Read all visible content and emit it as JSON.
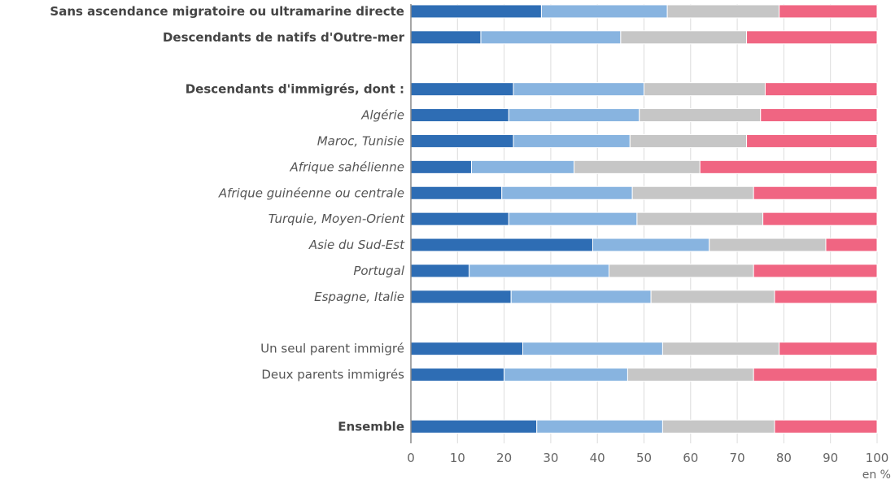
{
  "chart_data": {
    "type": "bar",
    "orientation": "horizontal",
    "stacked": true,
    "categories": [
      {
        "label": "Sans ascendance migratoire ou ultramarine directe",
        "style": "bold",
        "values": [
          28,
          27,
          24,
          21
        ]
      },
      {
        "label": "Descendants de natifs d'Outre-mer",
        "style": "bold",
        "values": [
          15,
          30,
          27,
          28
        ]
      },
      {
        "label": "",
        "style": "gap",
        "values": []
      },
      {
        "label": "Descendants d'immigrés, dont :",
        "style": "bold",
        "values": [
          22,
          28,
          26,
          24
        ]
      },
      {
        "label": "Algérie",
        "style": "italic",
        "values": [
          21,
          28,
          26,
          25
        ]
      },
      {
        "label": "Maroc, Tunisie",
        "style": "italic",
        "values": [
          22,
          25,
          25,
          28
        ]
      },
      {
        "label": "Afrique sahélienne",
        "style": "italic",
        "values": [
          13,
          22,
          27,
          38
        ]
      },
      {
        "label": "Afrique guinéenne ou centrale",
        "style": "italic",
        "values": [
          19.5,
          28,
          26,
          26.5
        ]
      },
      {
        "label": "Turquie, Moyen-Orient",
        "style": "italic",
        "values": [
          21,
          27.5,
          27,
          24.5
        ]
      },
      {
        "label": "Asie du Sud-Est",
        "style": "italic",
        "values": [
          39,
          25,
          25,
          11
        ]
      },
      {
        "label": "Portugal",
        "style": "italic",
        "values": [
          12.5,
          30,
          31,
          26.5
        ]
      },
      {
        "label": "Espagne, Italie",
        "style": "italic",
        "values": [
          21.5,
          30,
          26.5,
          22
        ]
      },
      {
        "label": "",
        "style": "gap",
        "values": []
      },
      {
        "label": "Un seul parent immigré",
        "style": "normal",
        "values": [
          24,
          30,
          25,
          21
        ]
      },
      {
        "label": "Deux parents immigrés",
        "style": "normal",
        "values": [
          20,
          26.5,
          27,
          26.5
        ]
      },
      {
        "label": "",
        "style": "gap",
        "values": []
      },
      {
        "label": "Ensemble",
        "style": "bold",
        "values": [
          27,
          27,
          24,
          22
        ]
      }
    ],
    "series_colors": [
      "#2e6db4",
      "#88b4e0",
      "#c6c6c6",
      "#f06582"
    ],
    "xlim": [
      0,
      100
    ],
    "xticks": [
      "0",
      "10",
      "20",
      "30",
      "40",
      "50",
      "60",
      "70",
      "80",
      "90",
      "100"
    ],
    "unit_label": "en %",
    "grid": true
  }
}
